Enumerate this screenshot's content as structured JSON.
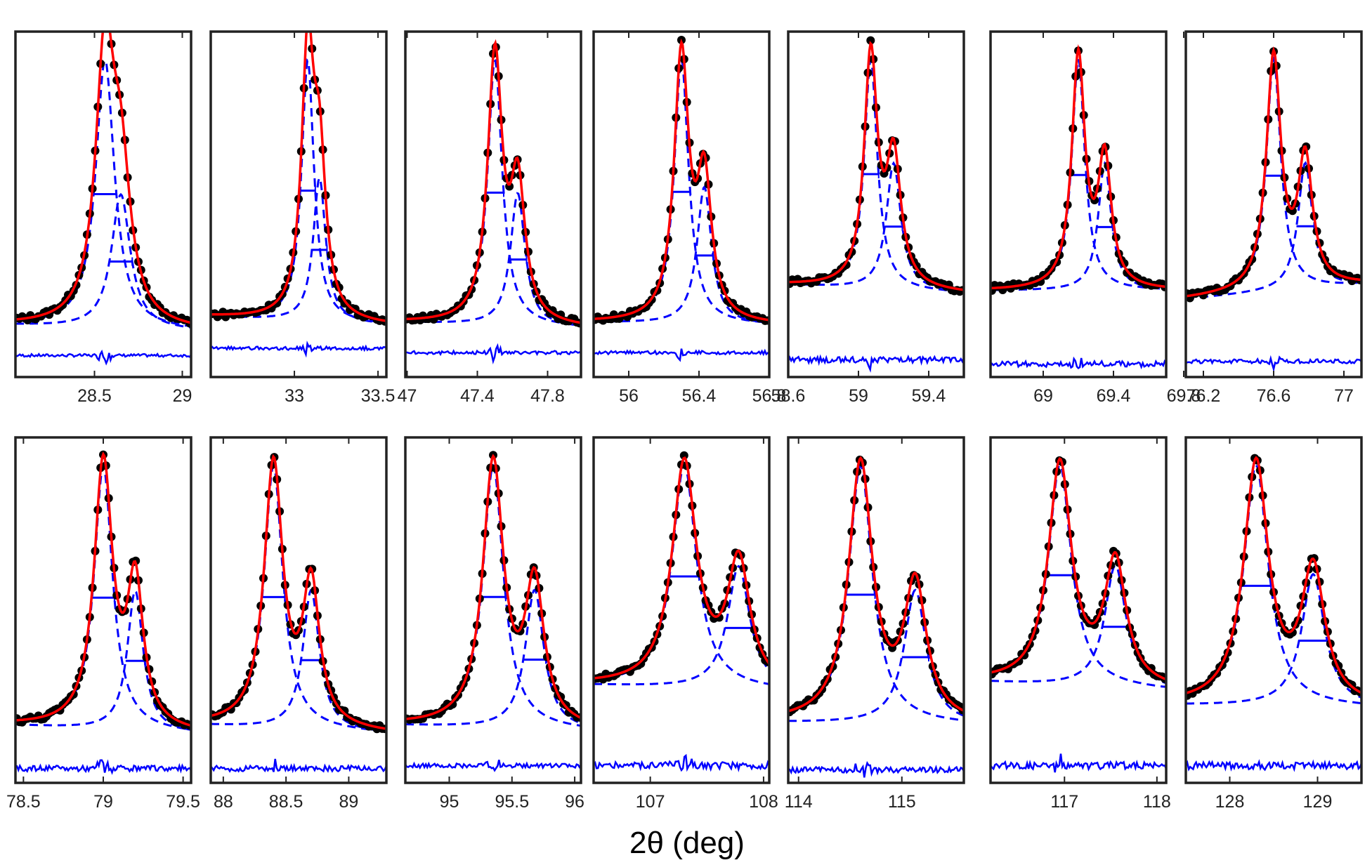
{
  "figure": {
    "xlabel": "2θ (deg)",
    "colors": {
      "data_points": "#000000",
      "fit": "#ff0000",
      "components": "#0000ff",
      "residual": "#0000ff",
      "frame": "#222222"
    },
    "legend": "none",
    "grid": false
  },
  "chart_data": [
    {
      "type": "scatter",
      "row": 1,
      "col": 1,
      "xlim": [
        28.05,
        29.05
      ],
      "xticks": [
        28.5,
        29
      ],
      "xtick_labels": [
        "28.5",
        "29"
      ],
      "peak1": 28.56,
      "peak2": 28.65,
      "ratio": 0.5,
      "w1": 0.065,
      "w2": 0.065,
      "base_left": 0.06,
      "base_right": 0.04,
      "ymax": 1.08,
      "resid_offset": -0.045,
      "resid_amp": 0.01,
      "series": [
        {
          "name": "observed"
        },
        {
          "name": "fit"
        },
        {
          "name": "component 1"
        },
        {
          "name": "component 2"
        },
        {
          "name": "residual"
        }
      ]
    },
    {
      "type": "scatter",
      "row": 1,
      "col": 2,
      "xlim": [
        32.5,
        33.55
      ],
      "xticks": [
        33,
        33.5
      ],
      "xtick_labels": [
        "33",
        "33.5"
      ],
      "peak1": 33.08,
      "peak2": 33.15,
      "ratio": 0.55,
      "w1": 0.045,
      "w2": 0.045,
      "base_left": 0.09,
      "base_right": 0.06,
      "ymax": 1.08,
      "resid_offset": -0.02,
      "resid_amp": 0.012,
      "series": [
        {
          "name": "observed"
        },
        {
          "name": "fit"
        },
        {
          "name": "component 1"
        },
        {
          "name": "component 2"
        },
        {
          "name": "residual"
        }
      ]
    },
    {
      "type": "scatter",
      "row": 1,
      "col": 3,
      "xlim": [
        46.99,
        47.99
      ],
      "xticks": [
        47,
        47.4,
        47.8
      ],
      "xtick_labels": [
        "47",
        "47.4",
        "47.8"
      ],
      "peak1": 47.5,
      "peak2": 47.63,
      "ratio": 0.5,
      "w1": 0.05,
      "w2": 0.05,
      "base_left": 0.07,
      "base_right": 0.05,
      "ymax": 1.08,
      "resid_offset": -0.035,
      "resid_amp": 0.012,
      "series": [
        {
          "name": "observed"
        },
        {
          "name": "fit"
        },
        {
          "name": "component 1"
        },
        {
          "name": "component 2"
        },
        {
          "name": "residual"
        }
      ]
    },
    {
      "type": "scatter",
      "row": 1,
      "col": 4,
      "xlim": [
        55.8,
        56.8
      ],
      "xticks": [
        56,
        56.4,
        56.8
      ],
      "xtick_labels": [
        "56",
        "56.4",
        "56.8"
      ],
      "peak1": 56.3,
      "peak2": 56.43,
      "ratio": 0.52,
      "w1": 0.05,
      "w2": 0.05,
      "base_left": 0.07,
      "base_right": 0.06,
      "ymax": 1.08,
      "resid_offset": -0.035,
      "resid_amp": 0.012,
      "series": [
        {
          "name": "observed"
        },
        {
          "name": "fit"
        },
        {
          "name": "component 1"
        },
        {
          "name": "component 2"
        },
        {
          "name": "residual"
        }
      ]
    },
    {
      "type": "scatter",
      "row": 1,
      "col": 5,
      "xlim": [
        58.6,
        59.6
      ],
      "xticks": [
        58.6,
        59,
        59.4
      ],
      "xtick_labels": [
        "58.6",
        "59",
        "59.4"
      ],
      "peak1": 59.07,
      "peak2": 59.2,
      "ratio": 0.55,
      "w1": 0.045,
      "w2": 0.05,
      "base_left": 0.2,
      "base_right": 0.17,
      "ymax": 1.08,
      "resid_offset": -0.06,
      "resid_amp": 0.02,
      "series": [
        {
          "name": "observed"
        },
        {
          "name": "fit"
        },
        {
          "name": "component 1"
        },
        {
          "name": "component 2"
        },
        {
          "name": "residual"
        }
      ]
    },
    {
      "type": "scatter",
      "row": 1,
      "col": 6,
      "xlim": [
        68.7,
        69.7
      ],
      "xticks": [
        69,
        69.4,
        69.8
      ],
      "xtick_labels": [
        "69",
        "69.4",
        "69.8"
      ],
      "peak1": 69.2,
      "peak2": 69.35,
      "ratio": 0.55,
      "w1": 0.045,
      "w2": 0.045,
      "base_left": 0.18,
      "base_right": 0.18,
      "ymax": 1.08,
      "resid_offset": -0.075,
      "resid_amp": 0.02,
      "series": [
        {
          "name": "observed"
        },
        {
          "name": "fit"
        },
        {
          "name": "component 1"
        },
        {
          "name": "component 2"
        },
        {
          "name": "residual"
        }
      ]
    },
    {
      "type": "scatter",
      "row": 1,
      "col": 7,
      "xlim": [
        76.1,
        77.1
      ],
      "xticks": [
        76.2,
        76.6,
        77
      ],
      "xtick_labels": [
        "76.2",
        "76.6",
        "77"
      ],
      "peak1": 76.6,
      "peak2": 76.78,
      "ratio": 0.55,
      "w1": 0.05,
      "w2": 0.05,
      "base_left": 0.15,
      "base_right": 0.2,
      "ymax": 1.08,
      "resid_offset": -0.065,
      "resid_amp": 0.015,
      "series": [
        {
          "name": "observed"
        },
        {
          "name": "fit"
        },
        {
          "name": "component 1"
        },
        {
          "name": "component 2"
        },
        {
          "name": "residual"
        }
      ]
    },
    {
      "type": "scatter",
      "row": 2,
      "col": 1,
      "xlim": [
        78.45,
        79.55
      ],
      "xticks": [
        78.5,
        79,
        79.5
      ],
      "xtick_labels": [
        "78.5",
        "79",
        "79.5"
      ],
      "peak1": 79.0,
      "peak2": 79.2,
      "ratio": 0.53,
      "w1": 0.07,
      "w2": 0.06,
      "base_left": 0.08,
      "base_right": 0.05,
      "ymax": 1.08,
      "resid_offset": -0.07,
      "resid_amp": 0.02,
      "series": [
        {
          "name": "observed"
        },
        {
          "name": "fit"
        },
        {
          "name": "component 1"
        },
        {
          "name": "component 2"
        },
        {
          "name": "residual"
        }
      ]
    },
    {
      "type": "scatter",
      "row": 2,
      "col": 2,
      "xlim": [
        87.9,
        89.3
      ],
      "xticks": [
        88,
        88.5,
        89
      ],
      "xtick_labels": [
        "88",
        "88.5",
        "89"
      ],
      "peak1": 88.4,
      "peak2": 88.7,
      "ratio": 0.53,
      "w1": 0.09,
      "w2": 0.08,
      "base_left": 0.08,
      "base_right": 0.05,
      "ymax": 1.08,
      "resid_offset": -0.07,
      "resid_amp": 0.02,
      "series": [
        {
          "name": "observed"
        },
        {
          "name": "fit"
        },
        {
          "name": "component 1"
        },
        {
          "name": "component 2"
        },
        {
          "name": "residual"
        }
      ]
    },
    {
      "type": "scatter",
      "row": 2,
      "col": 3,
      "xlim": [
        94.65,
        96.05
      ],
      "xticks": [
        95,
        95.5,
        96
      ],
      "xtick_labels": [
        "95",
        "95.5",
        "96"
      ],
      "peak1": 95.35,
      "peak2": 95.68,
      "ratio": 0.53,
      "w1": 0.1,
      "w2": 0.09,
      "base_left": 0.08,
      "base_right": 0.06,
      "ymax": 1.08,
      "resid_offset": -0.06,
      "resid_amp": 0.015,
      "series": [
        {
          "name": "observed"
        },
        {
          "name": "fit"
        },
        {
          "name": "component 1"
        },
        {
          "name": "component 2"
        },
        {
          "name": "residual"
        }
      ]
    },
    {
      "type": "scatter",
      "row": 2,
      "col": 4,
      "xlim": [
        106.5,
        108.05
      ],
      "xticks": [
        107,
        108
      ],
      "xtick_labels": [
        "107",
        "108"
      ],
      "peak1": 107.3,
      "peak2": 107.78,
      "ratio": 0.55,
      "w1": 0.13,
      "w2": 0.12,
      "base_left": 0.22,
      "base_right": 0.2,
      "ymax": 1.08,
      "resid_offset": -0.06,
      "resid_amp": 0.025,
      "series": [
        {
          "name": "observed"
        },
        {
          "name": "fit"
        },
        {
          "name": "component 1"
        },
        {
          "name": "component 2"
        },
        {
          "name": "residual"
        }
      ]
    },
    {
      "type": "scatter",
      "row": 2,
      "col": 5,
      "xlim": [
        113.9,
        115.6
      ],
      "xticks": [
        114,
        115
      ],
      "xtick_labels": [
        "114",
        "115"
      ],
      "peak1": 114.6,
      "peak2": 115.13,
      "ratio": 0.52,
      "w1": 0.14,
      "w2": 0.13,
      "base_left": 0.09,
      "base_right": 0.08,
      "ymax": 1.08,
      "resid_offset": -0.075,
      "resid_amp": 0.02,
      "series": [
        {
          "name": "observed"
        },
        {
          "name": "fit"
        },
        {
          "name": "component 1"
        },
        {
          "name": "component 2"
        },
        {
          "name": "residual"
        }
      ]
    },
    {
      "type": "scatter",
      "row": 2,
      "col": 6,
      "xlim": [
        116.2,
        118.1
      ],
      "xticks": [
        117,
        118
      ],
      "xtick_labels": [
        "117",
        "118"
      ],
      "peak1": 116.95,
      "peak2": 117.55,
      "ratio": 0.55,
      "w1": 0.15,
      "w2": 0.14,
      "base_left": 0.23,
      "base_right": 0.2,
      "ymax": 1.08,
      "resid_offset": -0.06,
      "resid_amp": 0.025,
      "series": [
        {
          "name": "observed"
        },
        {
          "name": "fit"
        },
        {
          "name": "component 1"
        },
        {
          "name": "component 2"
        },
        {
          "name": "residual"
        }
      ]
    },
    {
      "type": "scatter",
      "row": 2,
      "col": 7,
      "xlim": [
        127.5,
        129.5
      ],
      "xticks": [
        128,
        129
      ],
      "xtick_labels": [
        "128",
        "129"
      ],
      "peak1": 128.3,
      "peak2": 128.95,
      "ratio": 0.55,
      "w1": 0.17,
      "w2": 0.16,
      "base_left": 0.15,
      "base_right": 0.14,
      "ymax": 1.08,
      "resid_offset": -0.06,
      "resid_amp": 0.025,
      "series": [
        {
          "name": "observed"
        },
        {
          "name": "fit"
        },
        {
          "name": "component 1"
        },
        {
          "name": "component 2"
        },
        {
          "name": "residual"
        }
      ]
    }
  ]
}
